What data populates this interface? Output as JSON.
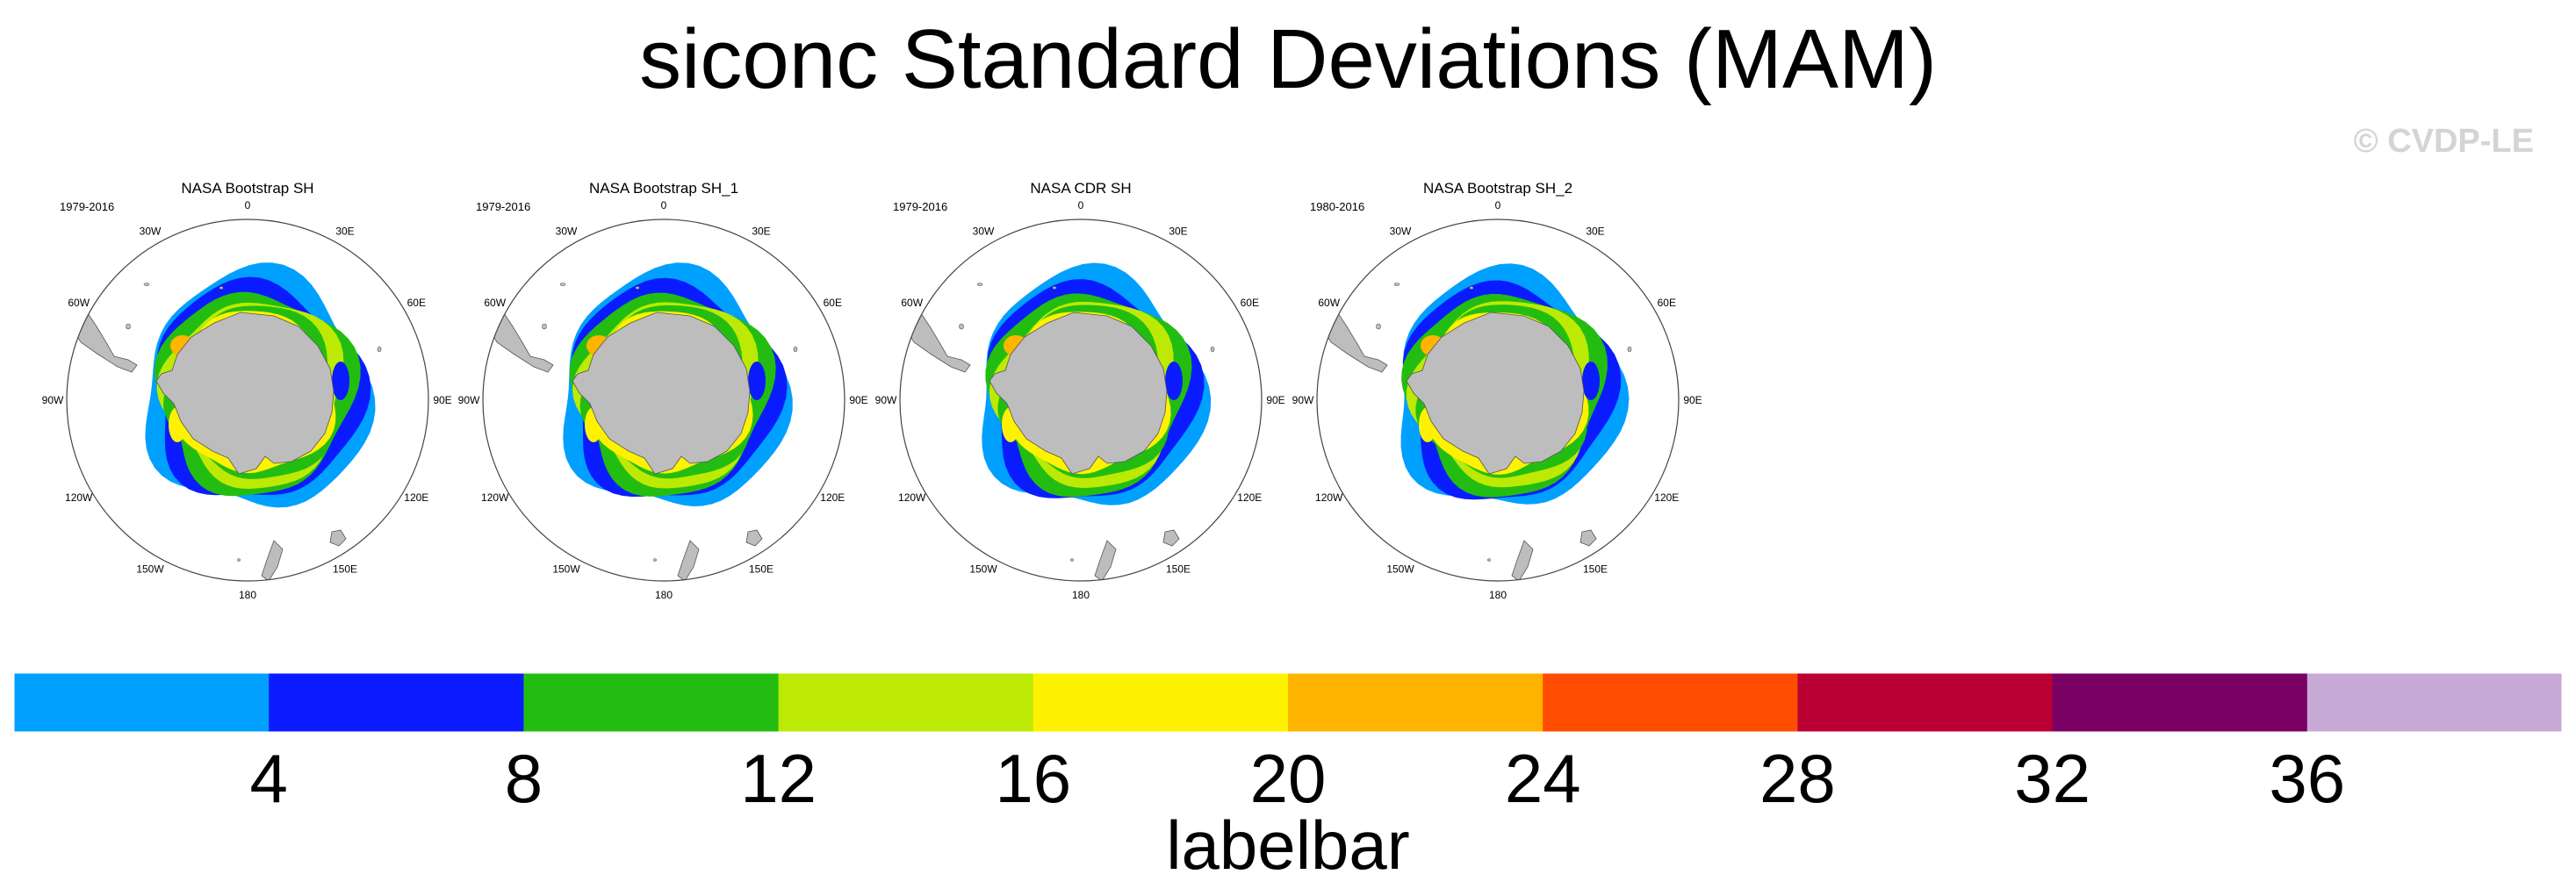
{
  "title": "siconc Standard Deviations (MAM)",
  "copyright": "© CVDP-LE",
  "chart_data": {
    "type": "heatmap",
    "projection": "south polar stereographic",
    "panels": [
      {
        "title": "NASA Bootstrap SH",
        "period": "1979-2016"
      },
      {
        "title": "NASA Bootstrap SH_1",
        "period": "1979-2016"
      },
      {
        "title": "NASA CDR SH",
        "period": "1979-2016"
      },
      {
        "title": "NASA Bootstrap SH_2",
        "period": "1980-2016"
      }
    ],
    "longitude_labels": [
      "0",
      "30E",
      "60E",
      "90E",
      "120E",
      "150E",
      "180",
      "150W",
      "120W",
      "90W",
      "60W",
      "30W"
    ],
    "colorbar": {
      "title": "labelbar",
      "ticks": [
        4,
        8,
        12,
        16,
        20,
        24,
        28,
        32,
        36
      ],
      "colors": [
        "#00a0ff",
        "#0a1cff",
        "#23bd11",
        "#bcea04",
        "#fff200",
        "#ffb400",
        "#ff4c00",
        "#bb0033",
        "#7a0064",
        "#c8aad6"
      ]
    }
  }
}
